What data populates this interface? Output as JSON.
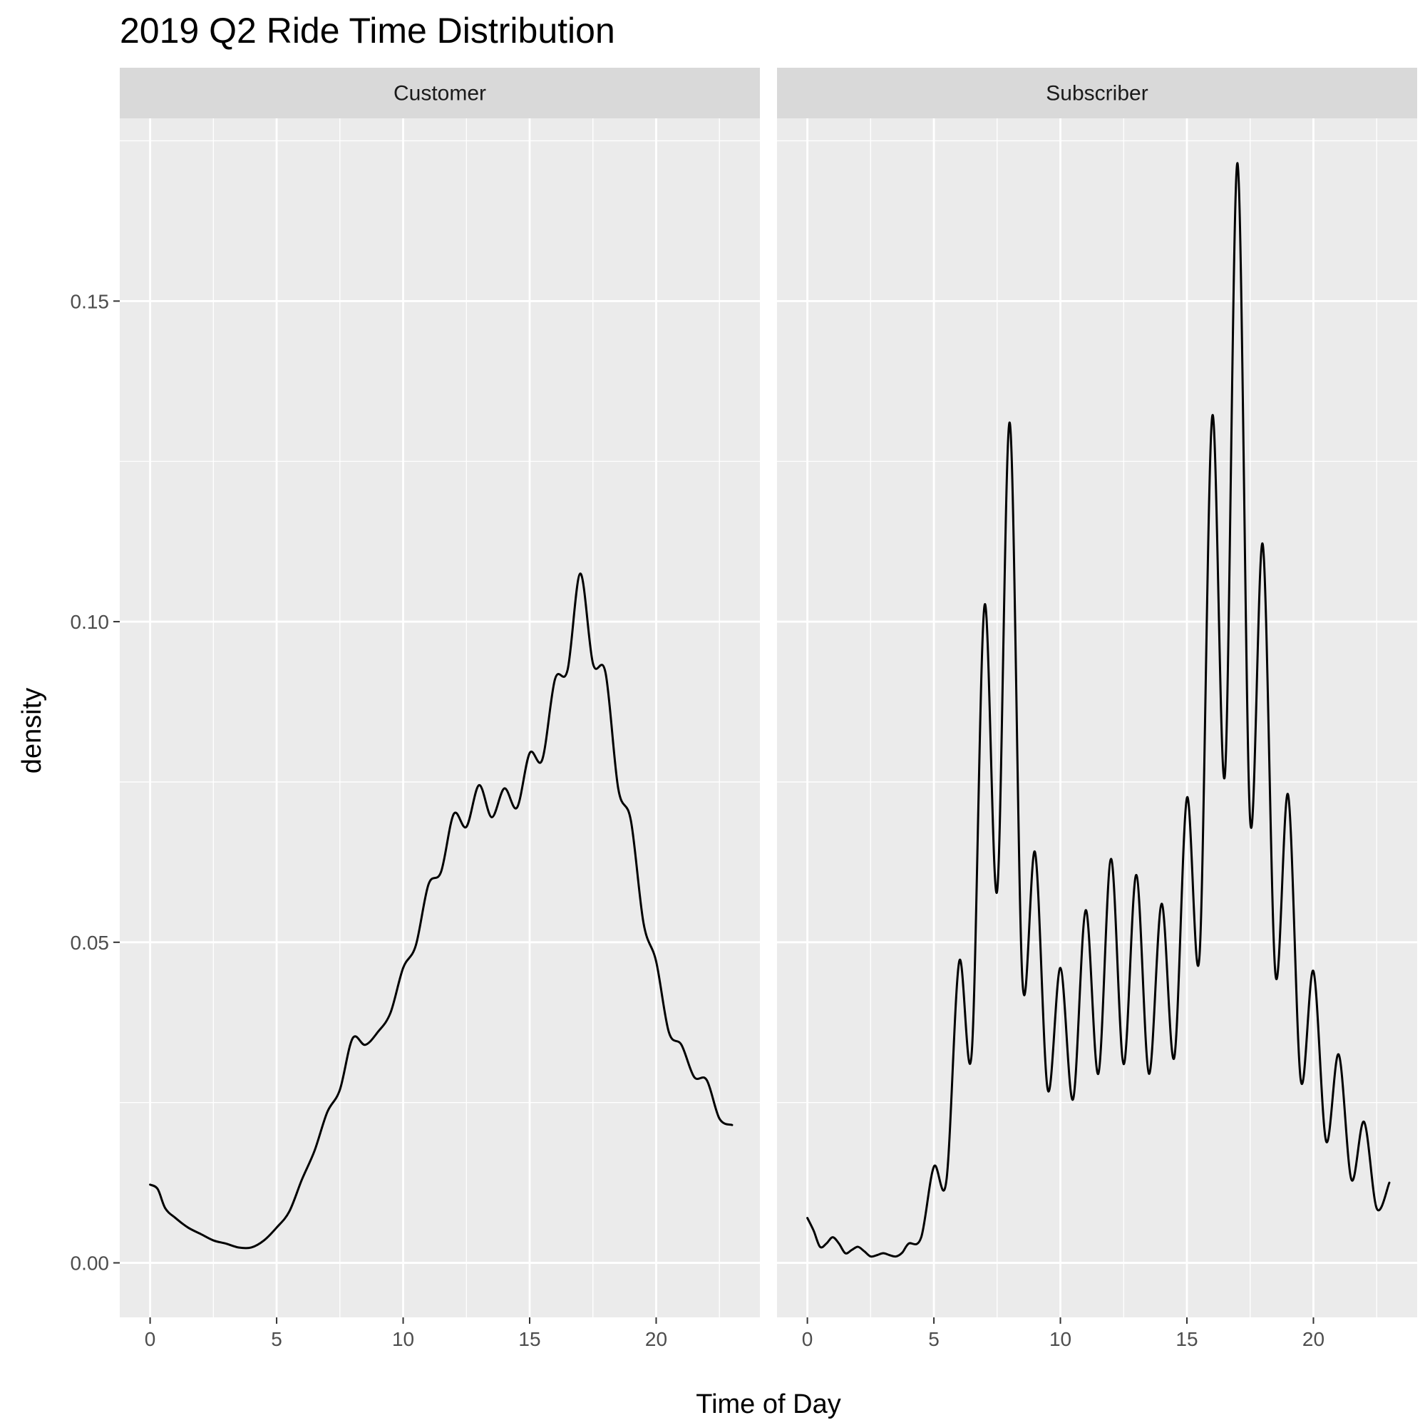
{
  "chart_data": {
    "type": "line",
    "title": "2019 Q2 Ride Time Distribution",
    "xlabel": "Time of Day",
    "ylabel": "density",
    "xlim": [
      -1.2,
      24.1
    ],
    "ylim": [
      -0.0085,
      0.1785
    ],
    "x_ticks": [
      0,
      5,
      10,
      15,
      20
    ],
    "x_minor_ticks": [
      2.5,
      7.5,
      12.5,
      17.5,
      22.5
    ],
    "y_ticks": [
      0.0,
      0.05,
      0.1,
      0.15
    ],
    "y_tick_labels": [
      "0.00",
      "0.05",
      "0.10",
      "0.15"
    ],
    "y_minor_ticks": [
      0.025,
      0.075,
      0.125,
      0.175
    ],
    "grid": true,
    "colors": {
      "panel_background": "#ebebeb",
      "strip_background": "#d9d9d9",
      "grid": "#ffffff",
      "line": "#000000"
    },
    "panels": [
      {
        "strip": "Customer",
        "x": [
          0,
          0.3,
          0.6,
          1.0,
          1.5,
          2.0,
          2.5,
          3.0,
          3.5,
          4.0,
          4.5,
          5.0,
          5.5,
          6.0,
          6.5,
          7.0,
          7.5,
          8.0,
          8.5,
          9.0,
          9.5,
          10.0,
          10.5,
          11.0,
          11.5,
          12.0,
          12.5,
          13.0,
          13.5,
          14.0,
          14.5,
          15.0,
          15.5,
          16.0,
          16.5,
          17.0,
          17.5,
          18.0,
          18.5,
          19.0,
          19.5,
          20.0,
          20.5,
          21.0,
          21.5,
          22.0,
          22.5,
          23.0
        ],
        "y": [
          0.0122,
          0.0115,
          0.0085,
          0.007,
          0.0055,
          0.0045,
          0.0035,
          0.003,
          0.0024,
          0.0024,
          0.0035,
          0.0055,
          0.008,
          0.013,
          0.0175,
          0.0235,
          0.027,
          0.035,
          0.034,
          0.036,
          0.039,
          0.046,
          0.0495,
          0.059,
          0.061,
          0.07,
          0.068,
          0.0745,
          0.0695,
          0.074,
          0.071,
          0.0795,
          0.0785,
          0.091,
          0.0925,
          0.1075,
          0.0935,
          0.092,
          0.074,
          0.069,
          0.053,
          0.047,
          0.036,
          0.034,
          0.029,
          0.0285,
          0.0225,
          0.0215
        ]
      },
      {
        "strip": "Subscriber",
        "x": [
          0,
          0.25,
          0.5,
          0.75,
          1.0,
          1.25,
          1.5,
          1.75,
          2.0,
          2.25,
          2.5,
          2.75,
          3.0,
          3.25,
          3.5,
          3.75,
          4.0,
          4.5,
          5.0,
          5.5,
          6.0,
          6.5,
          7.0,
          7.5,
          8.0,
          8.5,
          9.0,
          9.5,
          10.0,
          10.5,
          11.0,
          11.5,
          12.0,
          12.5,
          13.0,
          13.5,
          14.0,
          14.5,
          15.0,
          15.5,
          16.0,
          16.5,
          17.0,
          17.5,
          18.0,
          18.5,
          19.0,
          19.5,
          20.0,
          20.5,
          21.0,
          21.5,
          22.0,
          22.5,
          23.0
        ],
        "y": [
          0.007,
          0.005,
          0.0025,
          0.003,
          0.004,
          0.003,
          0.0015,
          0.002,
          0.0025,
          0.0018,
          0.001,
          0.0012,
          0.0015,
          0.0012,
          0.001,
          0.0016,
          0.003,
          0.004,
          0.015,
          0.013,
          0.047,
          0.033,
          0.1025,
          0.058,
          0.131,
          0.044,
          0.064,
          0.027,
          0.046,
          0.0255,
          0.055,
          0.0295,
          0.063,
          0.031,
          0.0605,
          0.0295,
          0.056,
          0.032,
          0.0725,
          0.048,
          0.132,
          0.076,
          0.1715,
          0.069,
          0.112,
          0.045,
          0.073,
          0.0285,
          0.0455,
          0.019,
          0.0325,
          0.013,
          0.022,
          0.0085,
          0.0125
        ]
      }
    ]
  }
}
